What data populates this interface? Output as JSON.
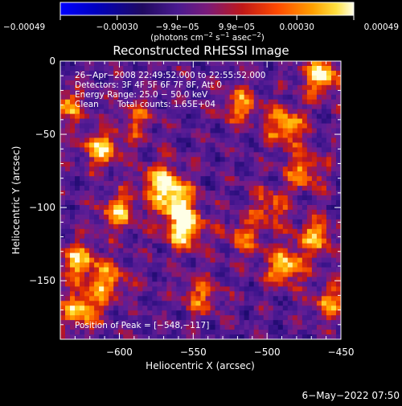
{
  "chart_data": {
    "type": "heatmap",
    "title": "Reconstructed RHESSI Image",
    "xlabel": "Heliocentric X (arcsec)",
    "ylabel": "Heliocentric Y (arcsec)",
    "xlim": [
      -640,
      -450
    ],
    "ylim": [
      -190,
      0
    ],
    "x_ticks": [
      {
        "value": -600,
        "label": "−600"
      },
      {
        "value": -550,
        "label": "−550"
      },
      {
        "value": -500,
        "label": "−500"
      },
      {
        "value": -450,
        "label": "−450"
      }
    ],
    "y_ticks": [
      {
        "value": 0,
        "label": "0"
      },
      {
        "value": -50,
        "label": "−50"
      },
      {
        "value": -100,
        "label": "−100"
      },
      {
        "value": -150,
        "label": "−150"
      }
    ],
    "colorbar": {
      "min": -0.00049,
      "max": 0.00049,
      "units_prefix": "(photons cm",
      "units_suffix": ")",
      "ticks": [
        {
          "value": -0.00049,
          "label": "−0.00049"
        },
        {
          "value": -0.0003,
          "label": "−0.00030"
        },
        {
          "value": -9.9e-05,
          "label": "−9.9e−05"
        },
        {
          "value": 9.9e-05,
          "label": "9.9e−05"
        },
        {
          "value": 0.0003,
          "label": "0.00030"
        },
        {
          "value": 0.00049,
          "label": "0.00049"
        }
      ],
      "colors": [
        "#0000ff",
        "#000060",
        "#2a0a60",
        "#5a1ea0",
        "#8a1a8a",
        "#c01818",
        "#ff5000",
        "#ffa000",
        "#ffe040",
        "#ffffe0"
      ]
    },
    "peak": {
      "x": -548,
      "y": -117
    },
    "bright_regions": [
      {
        "x": -556,
        "y": -115,
        "amp": 1.0
      },
      {
        "x": -562,
        "y": -95,
        "amp": 0.85
      },
      {
        "x": -572,
        "y": -82,
        "amp": 0.75
      },
      {
        "x": -612,
        "y": -60,
        "amp": 0.8
      },
      {
        "x": -600,
        "y": -103,
        "amp": 0.7
      },
      {
        "x": -628,
        "y": -137,
        "amp": 0.75
      },
      {
        "x": -608,
        "y": -151,
        "amp": 0.65
      },
      {
        "x": -626,
        "y": -170,
        "amp": 0.85
      },
      {
        "x": -487,
        "y": -45,
        "amp": 0.8
      },
      {
        "x": -475,
        "y": -75,
        "amp": 0.65
      },
      {
        "x": -463,
        "y": -10,
        "amp": 0.9
      },
      {
        "x": -467,
        "y": -120,
        "amp": 0.7
      },
      {
        "x": -488,
        "y": -140,
        "amp": 0.85
      },
      {
        "x": -457,
        "y": -165,
        "amp": 0.6
      },
      {
        "x": -517,
        "y": -120,
        "amp": 0.5
      },
      {
        "x": -545,
        "y": -160,
        "amp": 0.55
      },
      {
        "x": -518,
        "y": -30,
        "amp": 0.6
      },
      {
        "x": -498,
        "y": -100,
        "amp": 0.55
      },
      {
        "x": -636,
        "y": -30,
        "amp": 0.6
      },
      {
        "x": -588,
        "y": -40,
        "amp": 0.45
      }
    ]
  },
  "annotations": {
    "time_range": "26−Apr−2008 22:49:52.000 to 22:55:52.000",
    "detectors": "Detectors: 3F 4F 5F 6F 7F 8F, Att 0",
    "energy_range": "Energy Range: 25.0 − 50.0 keV",
    "clean": "Clean",
    "total_counts": "Total counts: 1.65E+04",
    "peak_position": "Position of Peak = [−548,−117]"
  },
  "footer": {
    "date": "6−May−2022 07:50"
  }
}
